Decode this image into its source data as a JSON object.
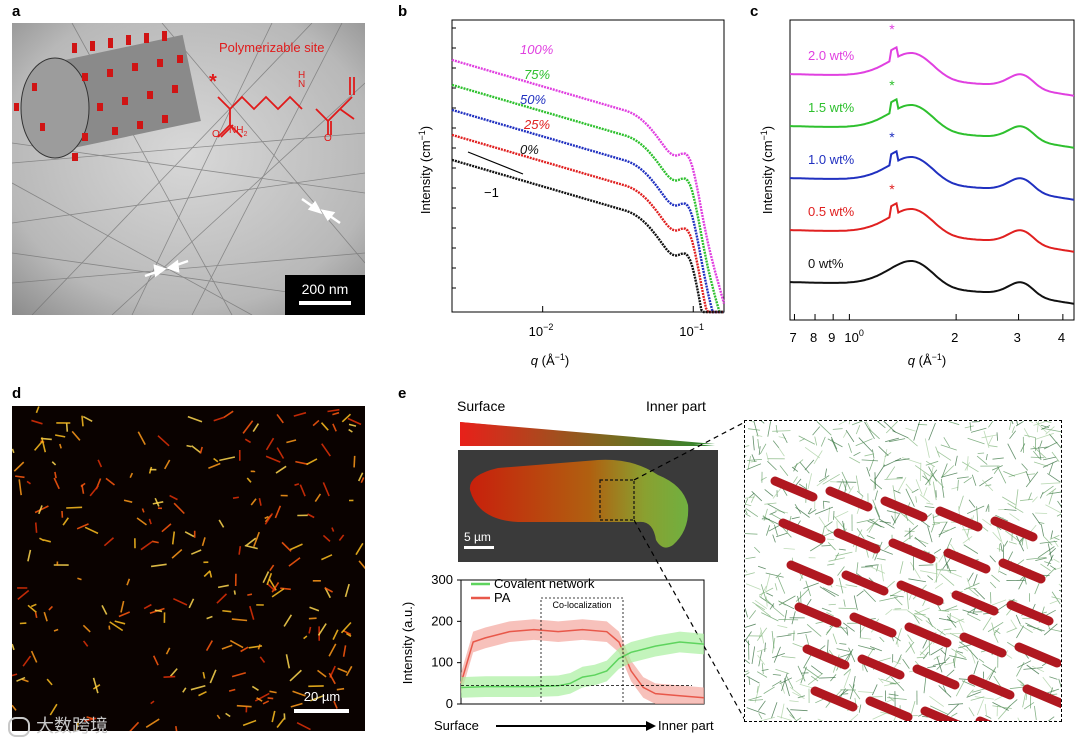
{
  "panels": {
    "a": {
      "label": "a",
      "annotation": "Polymerizable site",
      "chem_star": "*",
      "chem_nh": "N",
      "chem_h": "H",
      "chem_nh2": "NH",
      "chem_nh2_sub": "2",
      "chem_o": "O",
      "scale_bar": "200 nm"
    },
    "b": {
      "label": "b",
      "slope_label": "−1",
      "series_labels": [
        "100%",
        "75%",
        "50%",
        "25%",
        "0%"
      ],
      "series_colors": [
        "#e040e0",
        "#2ec02e",
        "#2030c0",
        "#e02020",
        "#111111"
      ]
    },
    "c": {
      "label": "c",
      "series_labels": [
        "2.0 wt%",
        "1.5 wt%",
        "1.0 wt%",
        "0.5 wt%",
        "0 wt%"
      ],
      "series_colors": [
        "#e040e0",
        "#2ec02e",
        "#2030c0",
        "#e02020",
        "#111111"
      ],
      "star": "*"
    },
    "d": {
      "label": "d",
      "scale_bar": "20 µm"
    },
    "e": {
      "label": "e",
      "gradient_left": "Surface",
      "gradient_right": "Inner part",
      "scale_bar": "5 µm",
      "inset_box_label": "Co-localization",
      "bottom_left": "Surface",
      "bottom_right": "Inner part"
    }
  },
  "chart_data": [
    {
      "type": "line",
      "panel": "b",
      "xlabel_q": "q",
      "xlabel_unit": "(Å",
      "xlabel_exp": "−1",
      "xlabel_close": ")",
      "ylabel_main": "Intensity (cm",
      "ylabel_exp": "−1",
      "ylabel_close": ")",
      "x_scale": "log",
      "x_ticks": [
        {
          "base": "10",
          "exp": "−2",
          "value": 0.01
        },
        {
          "base": "10",
          "exp": "−1",
          "value": 0.1
        }
      ],
      "xlim": [
        0.0025,
        0.16
      ],
      "series": [
        {
          "name": "100%",
          "offset": 4
        },
        {
          "name": "75%",
          "offset": 3
        },
        {
          "name": "50%",
          "offset": 2
        },
        {
          "name": "25%",
          "offset": 1
        },
        {
          "name": "0%",
          "offset": 0
        }
      ]
    },
    {
      "type": "line",
      "panel": "c",
      "xlabel_q": "q",
      "xlabel_unit": "(Å",
      "xlabel_exp": "−1",
      "xlabel_close": ")",
      "ylabel_main": "Intensity (cm",
      "ylabel_exp": "−1",
      "ylabel_close": ")",
      "x_scale": "log",
      "x_tick_labels": [
        "7",
        "8",
        "9",
        "10",
        "2",
        "3",
        "4"
      ],
      "x_tick_label_exp": "0",
      "x_tick_values": [
        0.7,
        0.8,
        0.9,
        1.0,
        2.0,
        3.0,
        4.0
      ],
      "xlim": [
        0.68,
        4.3
      ],
      "series": [
        {
          "name": "2.0 wt%",
          "offset": 4
        },
        {
          "name": "1.5 wt%",
          "offset": 3
        },
        {
          "name": "1.0 wt%",
          "offset": 2
        },
        {
          "name": "0.5 wt%",
          "offset": 1
        },
        {
          "name": "0 wt%",
          "offset": 0
        }
      ]
    },
    {
      "type": "line",
      "panel": "e",
      "ylabel": "Intensity (a.u.)",
      "ylim": [
        0,
        300
      ],
      "y_ticks": [
        0,
        100,
        200,
        300
      ],
      "legend": [
        {
          "name": "Covalent network",
          "color": "#5ed45e"
        },
        {
          "name": "PA",
          "color": "#e8584a"
        }
      ],
      "series": [
        {
          "name": "PA",
          "x": [
            0,
            0.05,
            0.1,
            0.2,
            0.3,
            0.4,
            0.5,
            0.6,
            0.65,
            0.7,
            0.75,
            0.8,
            0.9,
            1.0
          ],
          "values": [
            50,
            150,
            160,
            175,
            180,
            175,
            180,
            175,
            150,
            80,
            40,
            25,
            20,
            15
          ]
        },
        {
          "name": "Covalent network",
          "x": [
            0,
            0.1,
            0.2,
            0.3,
            0.4,
            0.45,
            0.5,
            0.55,
            0.6,
            0.65,
            0.7,
            0.8,
            0.9,
            1.0
          ],
          "values": [
            40,
            42,
            42,
            42,
            44,
            50,
            65,
            70,
            80,
            110,
            125,
            140,
            150,
            145
          ]
        }
      ]
    }
  ],
  "watermark": "大数跨境"
}
